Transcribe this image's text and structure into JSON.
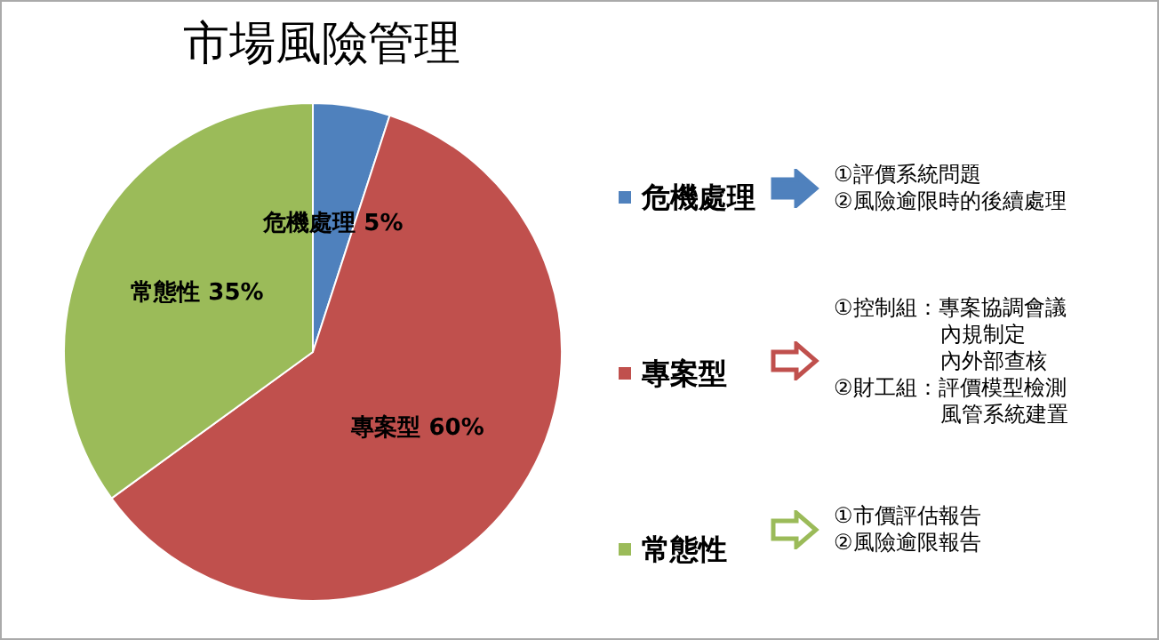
{
  "chart_data": {
    "type": "pie",
    "title": "市場風險管理",
    "categories": [
      "危機處理",
      "專案型",
      "常態性"
    ],
    "values": [
      5,
      60,
      35
    ],
    "value_labels": [
      "5%",
      "60%",
      "35%"
    ],
    "colors": [
      "#4f81bd",
      "#c0504d",
      "#9bbb59"
    ],
    "legend": "right",
    "annotations": [
      "①評價系統問題",
      "②風險逾限時的後續處理",
      "①控制組：專案協調會議",
      "內規制定",
      "內外部查核",
      "②財工組：評價模型檢測",
      "風管系統建置",
      "①市價評估報告",
      "②風險逾限報告"
    ]
  }
}
